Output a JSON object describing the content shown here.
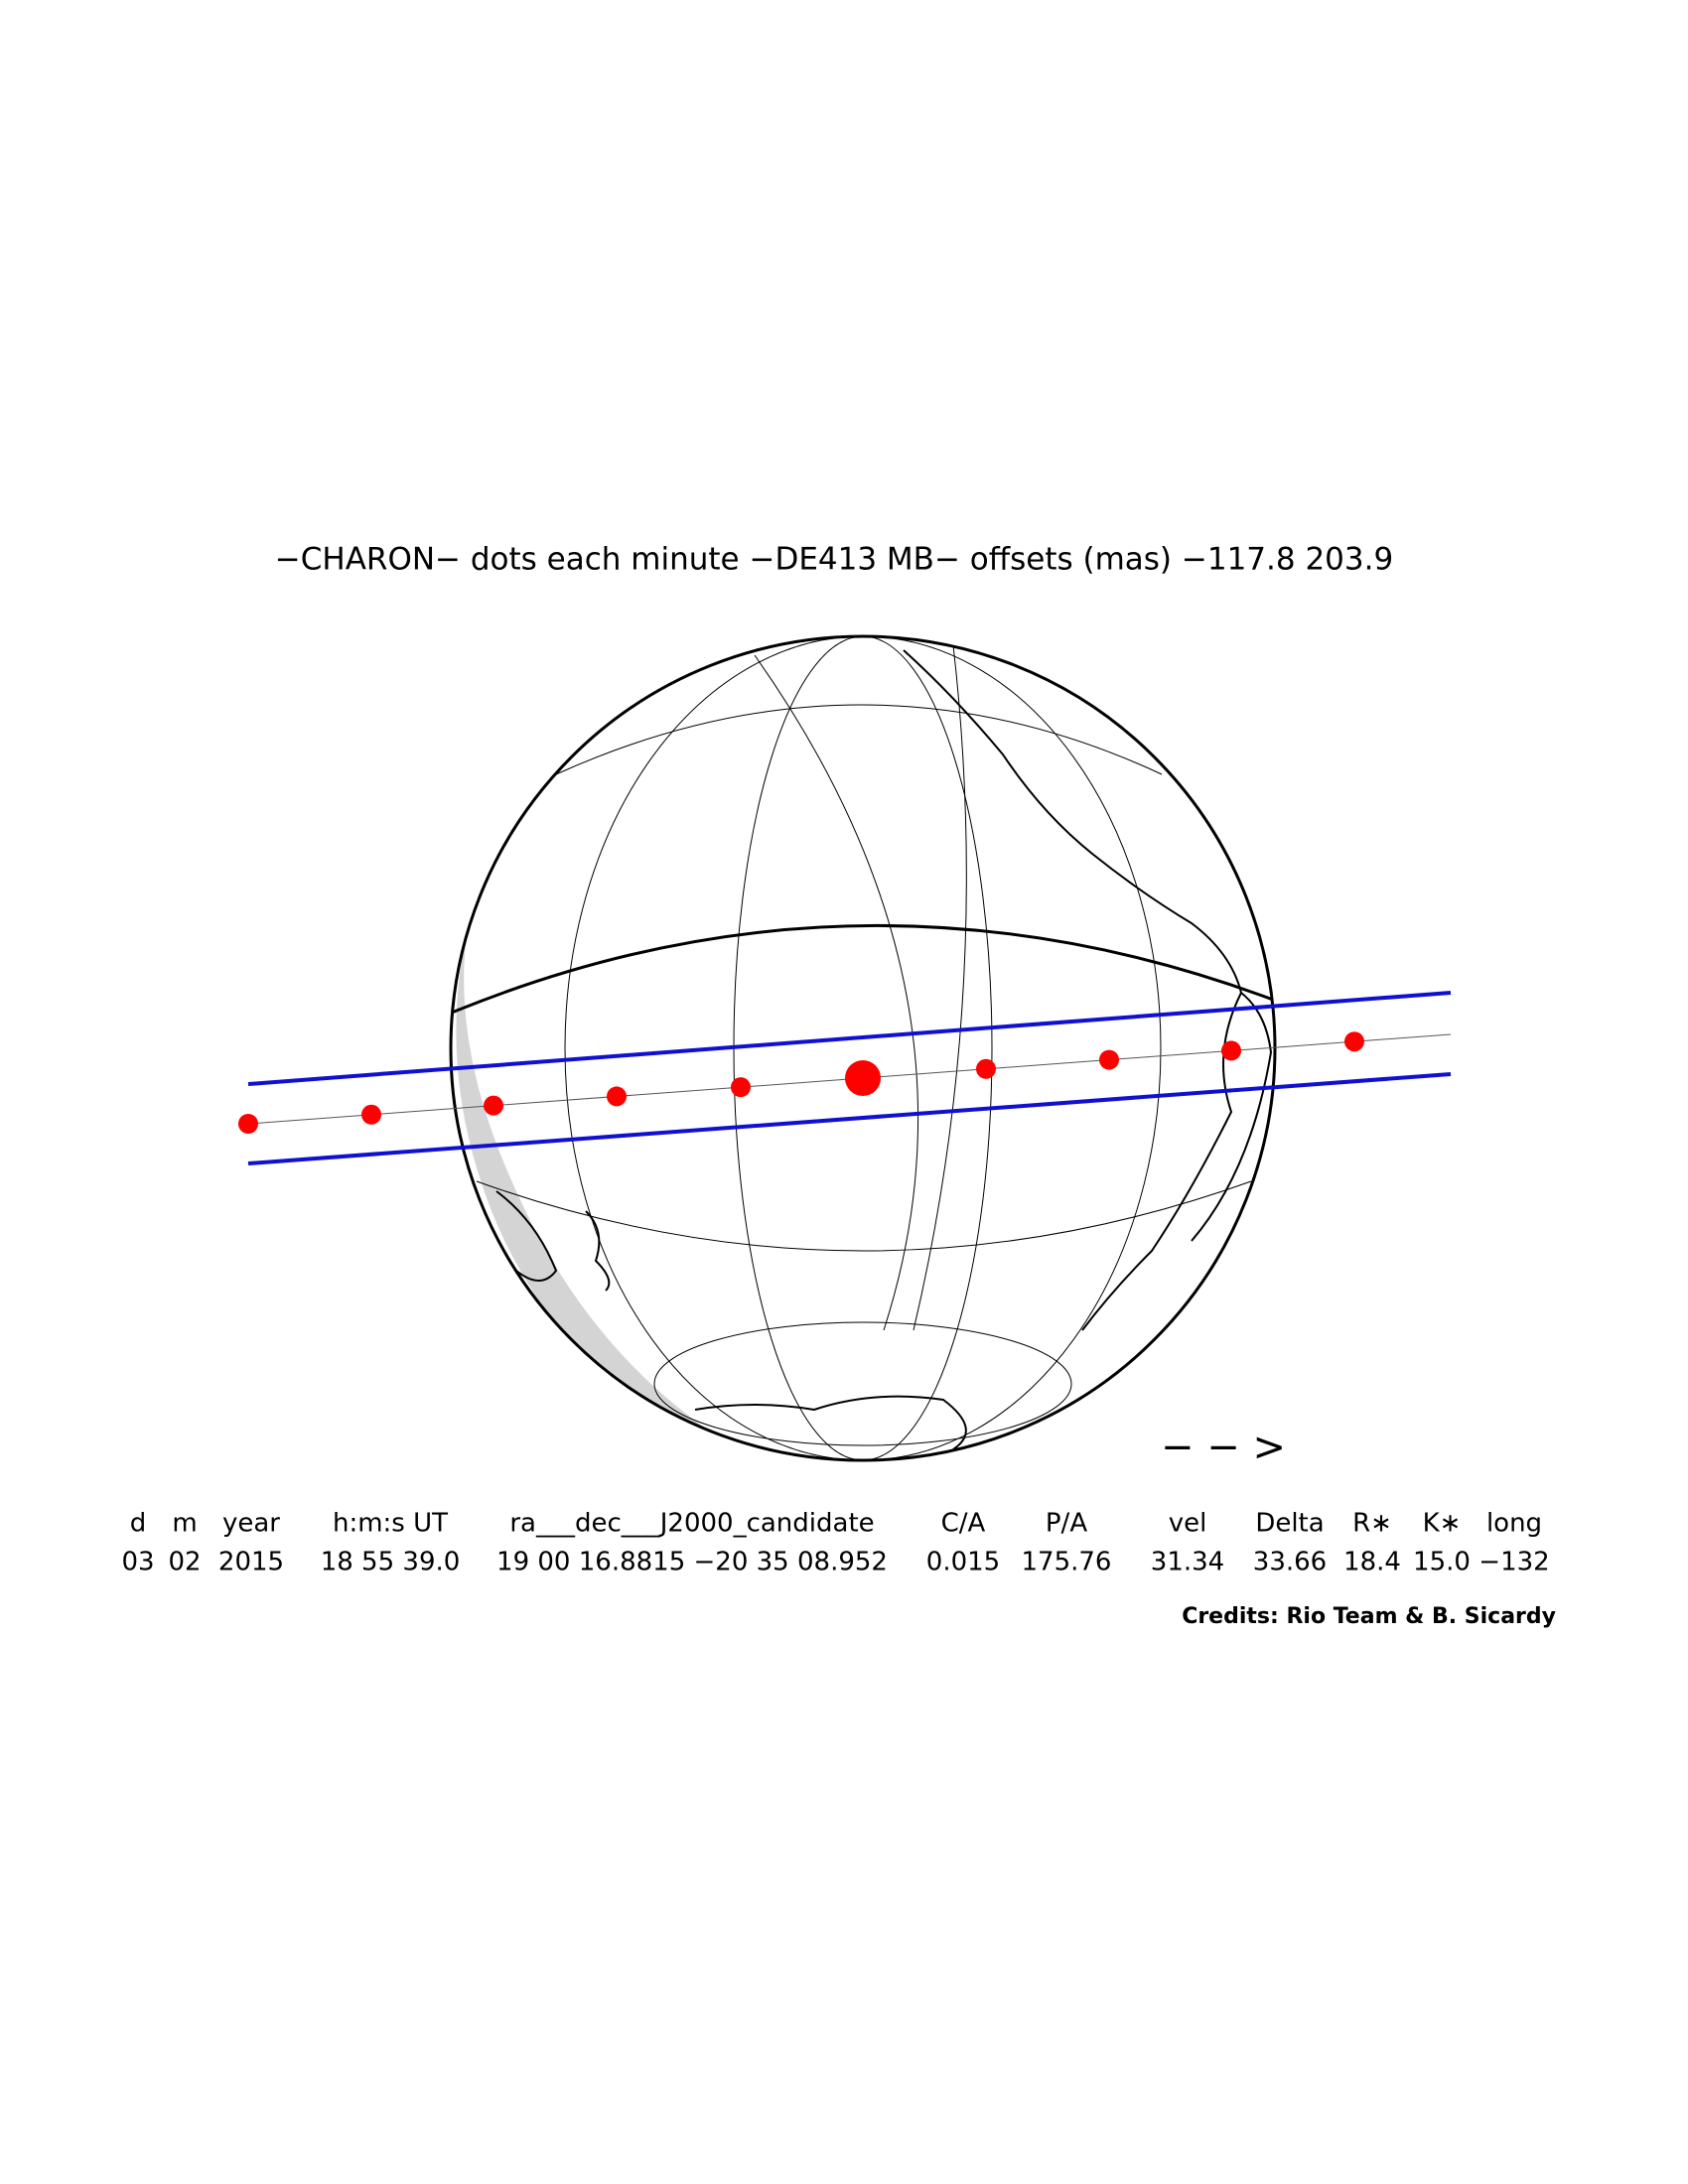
{
  "header": {
    "title": "−CHARON− dots each minute −DE413 MB− offsets (mas) −117.8   203.9"
  },
  "direction_arrow": "− − >",
  "table": {
    "columns": [
      "d",
      "m",
      "year",
      "h:m:s UT",
      "ra___dec___J2000_candidate",
      "C/A",
      "P/A",
      "vel",
      "Delta",
      "R∗",
      "K∗",
      "long"
    ],
    "rows": [
      [
        "03",
        "02",
        "2015",
        "18 55 39.0",
        "19 00 16.8815 −20 35 08.952",
        "0.015",
        "175.76",
        "31.34",
        "33.66",
        "18.4",
        "15.0",
        "−132"
      ]
    ]
  },
  "credits": "Credits: Rio Team & B. Sicardy"
}
